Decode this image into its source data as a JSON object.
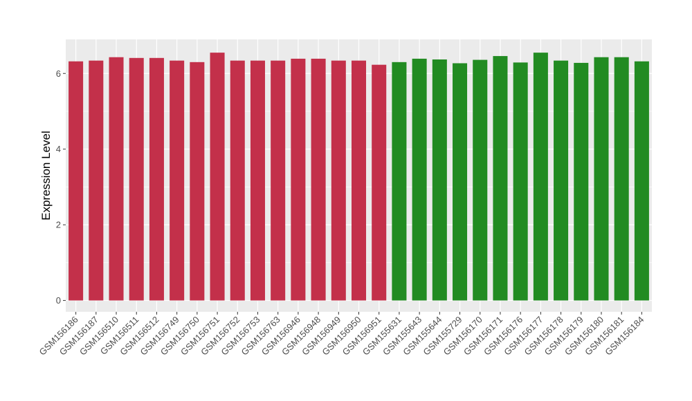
{
  "chart_data": {
    "type": "bar",
    "title": "",
    "xlabel": "",
    "ylabel": "Expression Level",
    "ylim": [
      -0.3,
      6.9
    ],
    "yticks": [
      0,
      2,
      4,
      6
    ],
    "grid": true,
    "legend": "none",
    "colors": {
      "panel_background": "#ebebeb",
      "grid": "#ffffff",
      "group_1": "#c3304a",
      "group_2": "#228b22"
    },
    "categories": [
      "GSM156186",
      "GSM156187",
      "GSM156510",
      "GSM156511",
      "GSM156512",
      "GSM156749",
      "GSM156750",
      "GSM156751",
      "GSM156752",
      "GSM156753",
      "GSM156763",
      "GSM156946",
      "GSM156948",
      "GSM156949",
      "GSM156950",
      "GSM156951",
      "GSM155631",
      "GSM155643",
      "GSM155644",
      "GSM155729",
      "GSM156170",
      "GSM156171",
      "GSM156176",
      "GSM156177",
      "GSM156178",
      "GSM156179",
      "GSM156180",
      "GSM156181",
      "GSM156184"
    ],
    "values": [
      6.32,
      6.34,
      6.43,
      6.41,
      6.41,
      6.34,
      6.3,
      6.55,
      6.34,
      6.34,
      6.34,
      6.39,
      6.39,
      6.34,
      6.34,
      6.23,
      6.3,
      6.39,
      6.37,
      6.27,
      6.36,
      6.46,
      6.29,
      6.55,
      6.34,
      6.28,
      6.43,
      6.43,
      6.32
    ],
    "groups": [
      1,
      1,
      1,
      1,
      1,
      1,
      1,
      1,
      1,
      1,
      1,
      1,
      1,
      1,
      1,
      1,
      2,
      2,
      2,
      2,
      2,
      2,
      2,
      2,
      2,
      2,
      2,
      2,
      2
    ]
  }
}
